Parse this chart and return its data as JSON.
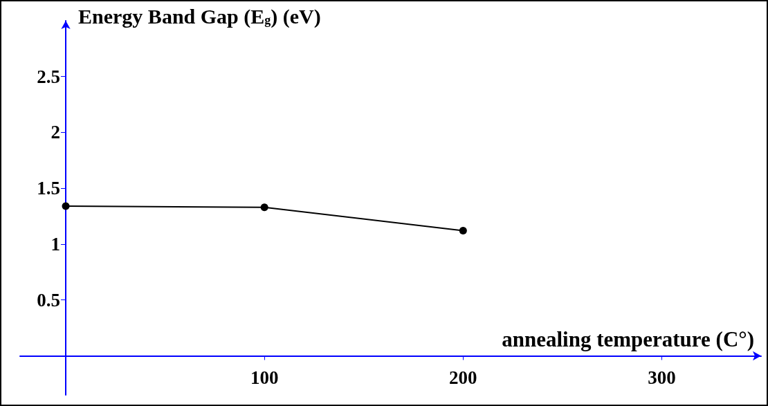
{
  "chart_data": {
    "type": "line",
    "xlabel": "annealing temperature (C°)",
    "ylabel": "Energy Band Gap (E$_{g}$) (eV)",
    "x": [
      0,
      100,
      200
    ],
    "series": [
      {
        "color": "#000000",
        "values": [
          1.34,
          1.33,
          1.12
        ]
      }
    ],
    "xlim": [
      -23,
      350
    ],
    "xticks": [
      100,
      200,
      300
    ],
    "ylim": [
      -0.35,
      3.0
    ],
    "yticks": [
      0.5,
      1,
      1.5,
      2,
      2.5
    ],
    "marker": "circle",
    "line_style": "solid",
    "grid": false
  }
}
